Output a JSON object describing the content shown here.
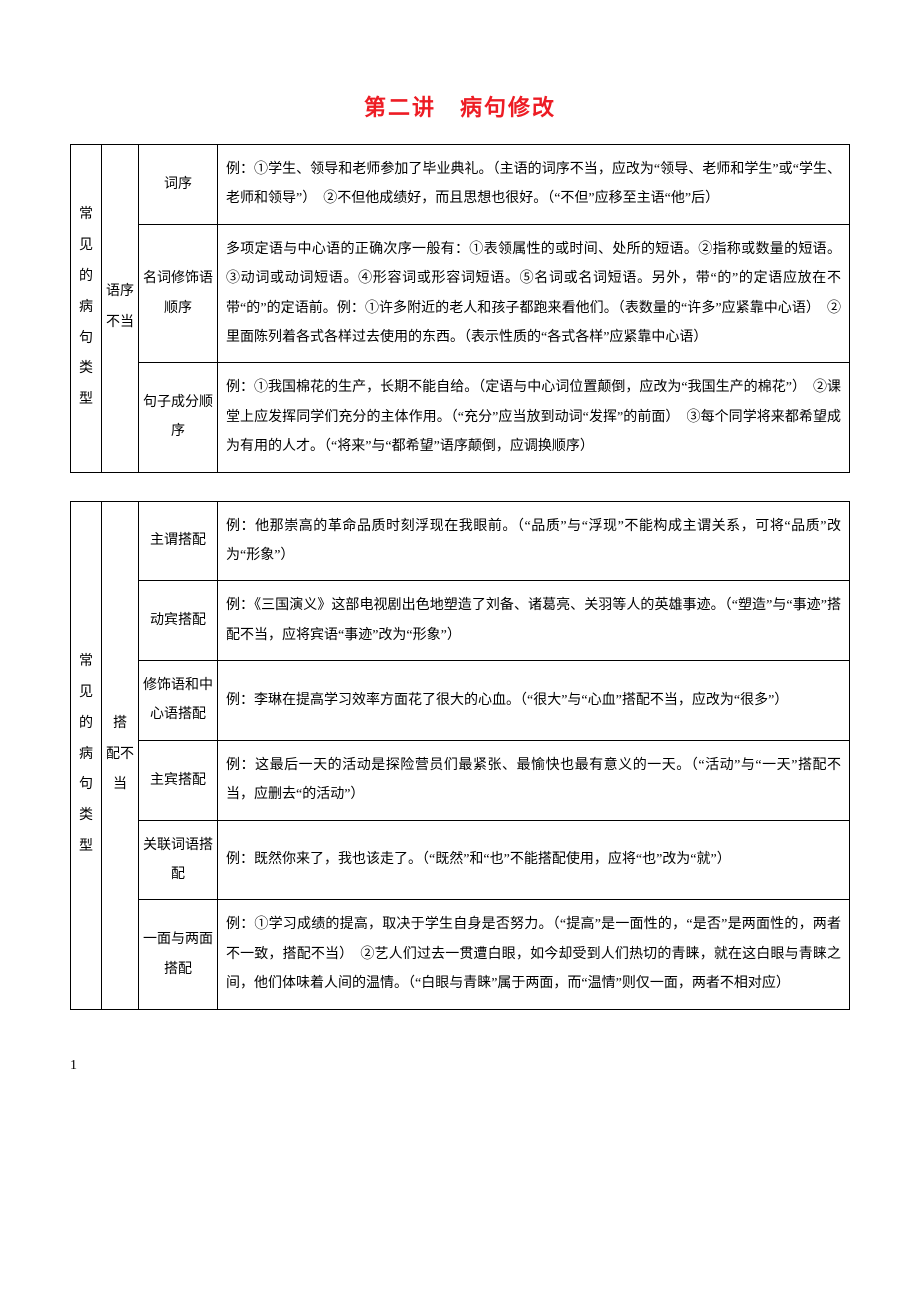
{
  "title": "第二讲　病句修改",
  "title_color": "#ed1c24",
  "border_color": "#000000",
  "text_color": "#000000",
  "background_color": "#ffffff",
  "font_family": "SimSun",
  "base_fontsize": 14,
  "title_fontsize": 22,
  "line_height": 2.1,
  "page_number": "1",
  "tables": [
    {
      "vertical_label": "常见的病句类型",
      "group_label": "语序不当",
      "rows": [
        {
          "sub": "词序",
          "content": "例：①学生、领导和老师参加了毕业典礼。（主语的词序不当，应改为“领导、老师和学生”或“学生、老师和领导”）　②不但他成绩好，而且思想也很好。（“不但”应移至主语“他”后）"
        },
        {
          "sub": "名词修饰语顺序",
          "content": "多项定语与中心语的正确次序一般有：①表领属性的或时间、处所的短语。②指称或数量的短语。③动词或动词短语。④形容词或形容词短语。⑤名词或名词短语。另外，带“的”的定语应放在不带“的”的定语前。例：①许多附近的老人和孩子都跑来看他们。（表数量的“许多”应紧靠中心语）　②里面陈列着各式各样过去使用的东西。（表示性质的“各式各样”应紧靠中心语）"
        },
        {
          "sub": "句子成分顺序",
          "content": "例：①我国棉花的生产，长期不能自给。（定语与中心词位置颠倒，应改为“我国生产的棉花”）　②课堂上应发挥同学们充分的主体作用。（“充分”应当放到动词“发挥”的前面）　③每个同学将来都希望成为有用的人才。（“将来”与“都希望”语序颠倒，应调换顺序）"
        }
      ]
    },
    {
      "vertical_label": "常见的病句类型",
      "group_label": "搭 配不当",
      "rows": [
        {
          "sub": "主谓搭配",
          "content": "例：他那崇高的革命品质时刻浮现在我眼前。（“品质”与“浮现”不能构成主谓关系，可将“品质”改为“形象”）"
        },
        {
          "sub": "动宾搭配",
          "content": "例：《三国演义》这部电视剧出色地塑造了刘备、诸葛亮、关羽等人的英雄事迹。（“塑造”与“事迹”搭配不当，应将宾语“事迹”改为“形象”）"
        },
        {
          "sub": "修饰语和中心语搭配",
          "content": "例：李琳在提高学习效率方面花了很大的心血。（“很大”与“心血”搭配不当，应改为“很多”）"
        },
        {
          "sub": "主宾搭配",
          "content": "例：这最后一天的活动是探险营员们最紧张、最愉快也最有意义的一天。（“活动”与“一天”搭配不当，应删去“的活动”）"
        },
        {
          "sub": "关联词语搭配",
          "content": "例：既然你来了，我也该走了。（“既然”和“也”不能搭配使用，应将“也”改为“就”）"
        },
        {
          "sub": "一面与两面搭配",
          "content": "例：①学习成绩的提高，取决于学生自身是否努力。（“提高”是一面性的，“是否”是两面性的，两者不一致，搭配不当）　②艺人们过去一贯遭白眼，如今却受到人们热切的青睐，就在这白眼与青睐之间，他们体味着人间的温情。（“白眼与青睐”属于两面，而“温情”则仅一面，两者不相对应）"
        }
      ]
    }
  ]
}
